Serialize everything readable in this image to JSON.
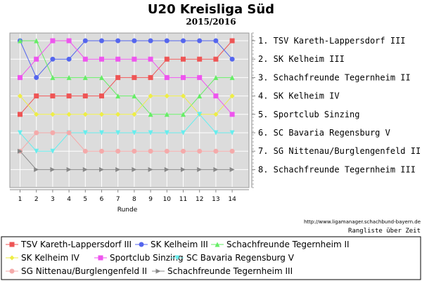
{
  "title": "U20 Kreisliga Süd",
  "subtitle": "2015/2016",
  "url_text": "http://www.ligamanager.schachbund-bayern.de",
  "caption": "Rangliste über Zeit",
  "chart_data": {
    "type": "line",
    "title": "U20 Kreisliga Süd",
    "subtitle": "2015/2016",
    "xlabel": "Runde",
    "ylabel": "",
    "x": [
      1,
      2,
      3,
      4,
      5,
      6,
      7,
      8,
      9,
      10,
      11,
      12,
      13,
      14
    ],
    "ylim": [
      1,
      8
    ],
    "y_inverted": true,
    "grid": true,
    "legend": "bottom",
    "final_ranking": [
      "1. TSV Kareth-Lappersdorf III",
      "2. SK Kelheim III",
      "3. Schachfreunde Tegernheim II",
      "4. SK Kelheim IV",
      "5. Sportclub Sinzing",
      "6. SC Bavaria Regensburg V",
      "7. SG Nittenau/Burglengenfeld II",
      "8. Schachfreunde Tegernheim III"
    ],
    "series": [
      {
        "name": "TSV Kareth-Lappersdorf III",
        "color": "#ee5555",
        "marker": "square",
        "values": [
          5,
          4,
          4,
          4,
          4,
          4,
          3,
          3,
          3,
          2,
          2,
          2,
          2,
          1
        ]
      },
      {
        "name": "SK Kelheim III",
        "color": "#5566ee",
        "marker": "circle",
        "values": [
          1,
          3,
          2,
          2,
          1,
          1,
          1,
          1,
          1,
          1,
          1,
          1,
          1,
          2
        ]
      },
      {
        "name": "Schachfreunde Tegernheim II",
        "color": "#66ee66",
        "marker": "triangle-up",
        "values": [
          1,
          1,
          3,
          3,
          3,
          3,
          4,
          4,
          5,
          5,
          5,
          4,
          3,
          3
        ]
      },
      {
        "name": "SK Kelheim IV",
        "color": "#eeee44",
        "marker": "diamond",
        "values": [
          4,
          5,
          5,
          5,
          5,
          5,
          5,
          5,
          4,
          4,
          4,
          5,
          5,
          4
        ]
      },
      {
        "name": "Sportclub Sinzing",
        "color": "#ee55ee",
        "marker": "square",
        "values": [
          3,
          2,
          1,
          1,
          2,
          2,
          2,
          2,
          2,
          3,
          3,
          3,
          4,
          5
        ]
      },
      {
        "name": "SC Bavaria Regensburg V",
        "color": "#66eeee",
        "marker": "triangle-down",
        "values": [
          6,
          7,
          7,
          6,
          6,
          6,
          6,
          6,
          6,
          6,
          6,
          5,
          6,
          6
        ]
      },
      {
        "name": "SG Nittenau/Burglengenfeld II",
        "color": "#f4aaaa",
        "marker": "circle",
        "values": [
          7,
          6,
          6,
          6,
          7,
          7,
          7,
          7,
          7,
          7,
          7,
          7,
          7,
          7
        ]
      },
      {
        "name": "Schachfreunde Tegernheim III",
        "color": "#888888",
        "marker": "triangle-right",
        "values": [
          7,
          8,
          8,
          8,
          8,
          8,
          8,
          8,
          8,
          8,
          8,
          8,
          8,
          8
        ]
      }
    ]
  }
}
